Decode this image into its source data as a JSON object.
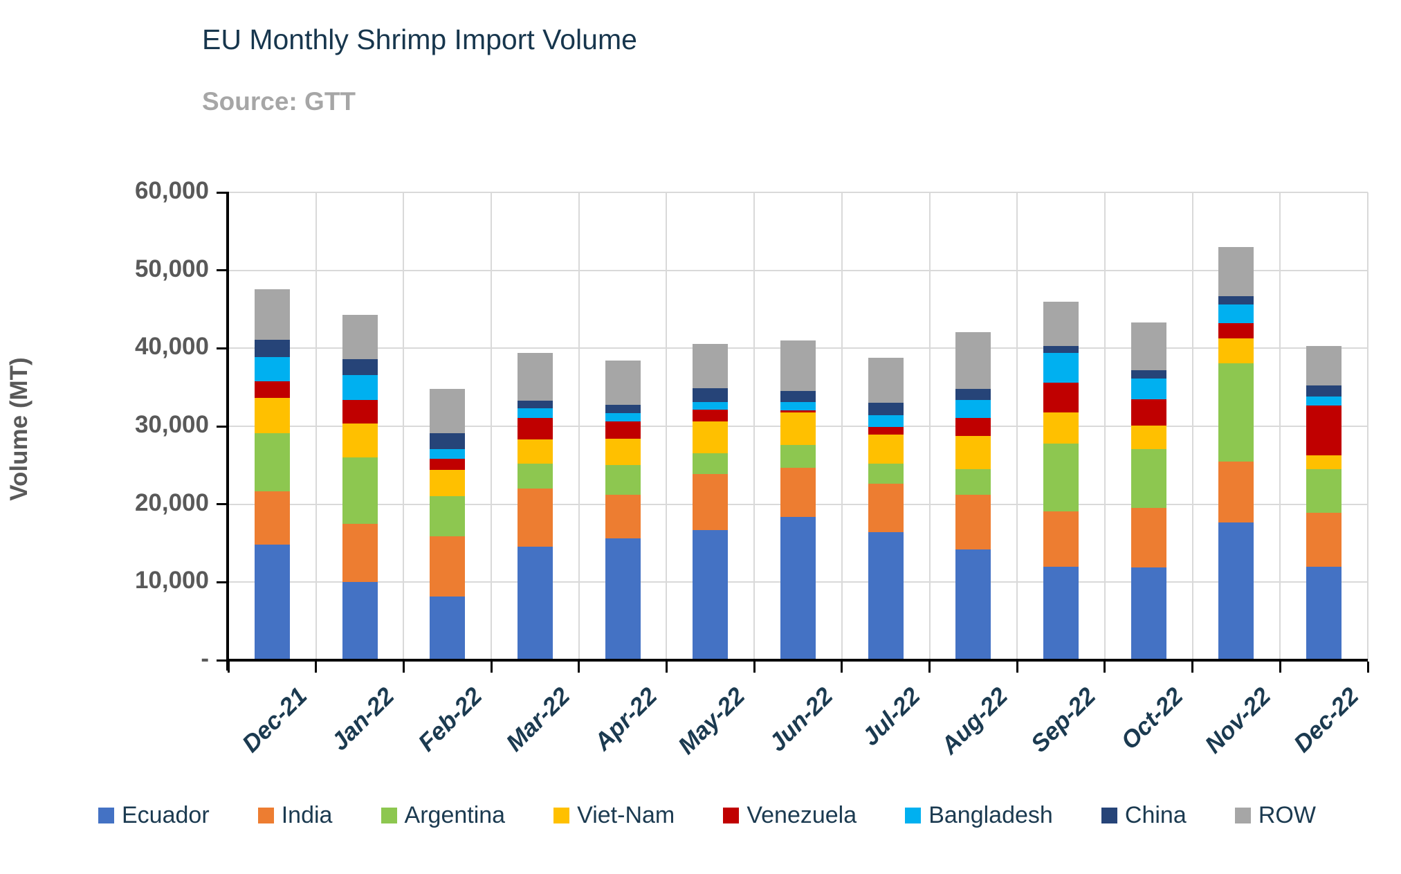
{
  "chart_data": {
    "type": "bar",
    "stacked": true,
    "title": "EU Monthly Shrimp Import Volume",
    "source": "Source: GTT",
    "ylabel": "Volume (MT)",
    "ylim": [
      0,
      60000
    ],
    "ytick_interval": 10000,
    "ytick_labels_top_to_bottom": [
      "60,000",
      "50,000",
      "40,000",
      "30,000",
      "20,000",
      "10,000",
      "-"
    ],
    "grid": true,
    "legend_position": "bottom",
    "categories": [
      "Dec-21",
      "Jan-22",
      "Feb-22",
      "Mar-22",
      "Apr-22",
      "May-22",
      "Jun-22",
      "Jul-22",
      "Aug-22",
      "Sep-22",
      "Oct-22",
      "Nov-22",
      "Dec-22"
    ],
    "series": [
      {
        "name": "Ecuador",
        "color": "#4472C4",
        "values": [
          14800,
          10050,
          8200,
          14550,
          15600,
          16650,
          18400,
          16400,
          14200,
          12000,
          11900,
          17700,
          12000
        ]
      },
      {
        "name": "India",
        "color": "#ED7D31",
        "values": [
          6900,
          7450,
          7700,
          7450,
          5650,
          7250,
          6300,
          6200,
          7000,
          7050,
          7600,
          7800,
          6900
        ]
      },
      {
        "name": "Argentina",
        "color": "#8DC750",
        "values": [
          7400,
          8500,
          5150,
          3200,
          3800,
          2600,
          2900,
          2600,
          3300,
          8700,
          7600,
          12550,
          5600
        ]
      },
      {
        "name": "Viet-Nam",
        "color": "#FFC000",
        "values": [
          4550,
          4400,
          3400,
          3100,
          3350,
          4100,
          4200,
          3700,
          4250,
          4050,
          2950,
          3250,
          1800
        ]
      },
      {
        "name": "Venezuela",
        "color": "#C00000",
        "values": [
          2100,
          3000,
          1350,
          2750,
          2250,
          1500,
          250,
          1050,
          2300,
          3750,
          3450,
          1900,
          6400
        ]
      },
      {
        "name": "Bangladesh",
        "color": "#00B0F0",
        "values": [
          3150,
          3200,
          1300,
          1300,
          1050,
          1000,
          1050,
          1500,
          2350,
          3850,
          2650,
          2450,
          1100
        ]
      },
      {
        "name": "China",
        "color": "#264478",
        "values": [
          2200,
          2000,
          2050,
          900,
          1050,
          1800,
          1450,
          1550,
          1400,
          900,
          1050,
          1050,
          1450
        ]
      },
      {
        "name": "ROW",
        "color": "#A6A6A6",
        "values": [
          6500,
          5700,
          5650,
          6150,
          5650,
          5700,
          6450,
          5800,
          7300,
          5700,
          6100,
          6300,
          5050
        ]
      }
    ],
    "totals": [
      47600,
      44300,
      34800,
      39400,
      38400,
      40600,
      41000,
      38800,
      42100,
      46000,
      43300,
      53000,
      40300
    ],
    "colors": {
      "title_text": "#17364D",
      "axis_label_text": "#595959",
      "category_label_text": "#1B3A50",
      "source_text": "#A6A6A6",
      "gridline": "#D9D9D9",
      "axis_line": "#000000"
    }
  }
}
